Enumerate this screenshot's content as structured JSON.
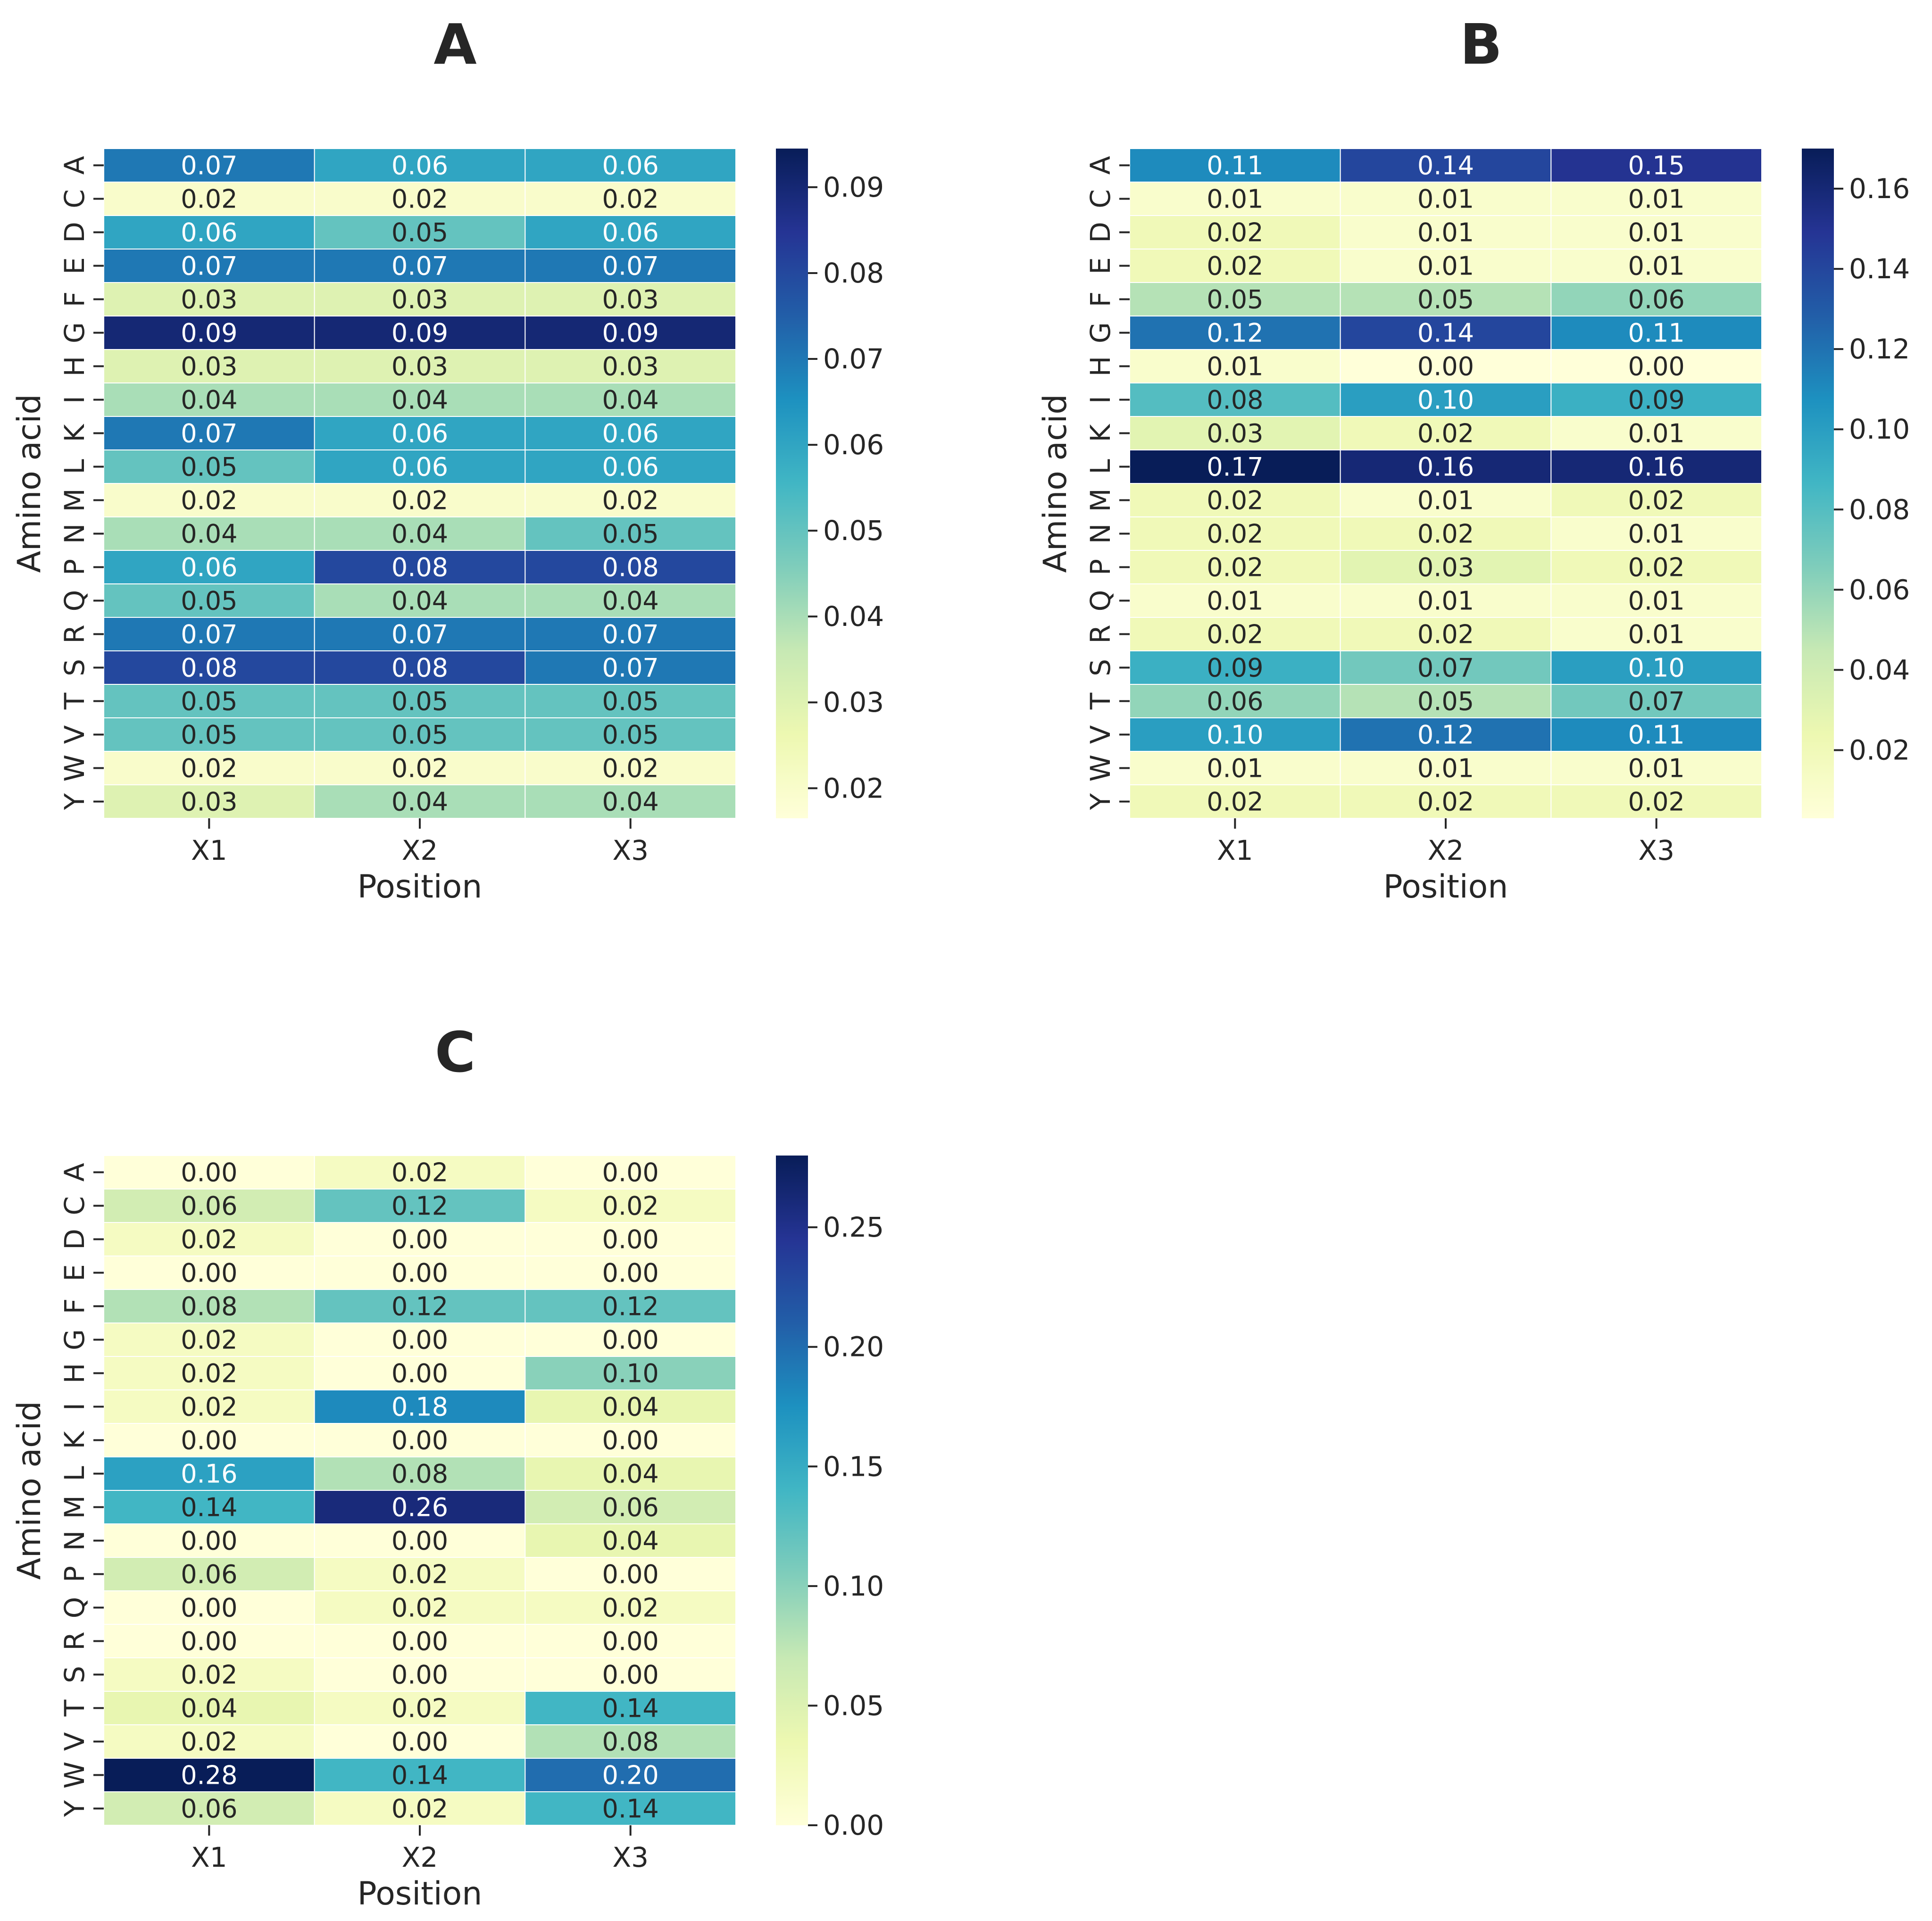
{
  "chart_data": [
    {
      "type": "heatmap",
      "title": "A",
      "xlabel": "Position",
      "ylabel": "Amino acid",
      "x_categories": [
        "X1",
        "X2",
        "X3"
      ],
      "y_categories": [
        "A",
        "C",
        "D",
        "E",
        "F",
        "G",
        "H",
        "I",
        "K",
        "L",
        "M",
        "N",
        "P",
        "Q",
        "R",
        "S",
        "T",
        "V",
        "W",
        "Y"
      ],
      "values": [
        [
          0.07,
          0.06,
          0.06
        ],
        [
          0.02,
          0.02,
          0.02
        ],
        [
          0.06,
          0.05,
          0.06
        ],
        [
          0.07,
          0.07,
          0.07
        ],
        [
          0.03,
          0.03,
          0.03
        ],
        [
          0.09,
          0.09,
          0.09
        ],
        [
          0.03,
          0.03,
          0.03
        ],
        [
          0.04,
          0.04,
          0.04
        ],
        [
          0.07,
          0.06,
          0.06
        ],
        [
          0.05,
          0.06,
          0.06
        ],
        [
          0.02,
          0.02,
          0.02
        ],
        [
          0.04,
          0.04,
          0.05
        ],
        [
          0.06,
          0.08,
          0.08
        ],
        [
          0.05,
          0.04,
          0.04
        ],
        [
          0.07,
          0.07,
          0.07
        ],
        [
          0.08,
          0.08,
          0.07
        ],
        [
          0.05,
          0.05,
          0.05
        ],
        [
          0.05,
          0.05,
          0.05
        ],
        [
          0.02,
          0.02,
          0.02
        ],
        [
          0.03,
          0.04,
          0.04
        ]
      ],
      "colormap": "YlGnBu",
      "colorbar_range": [
        0.0165,
        0.0945
      ],
      "colorbar_ticks": [
        "0.02",
        "0.03",
        "0.04",
        "0.05",
        "0.06",
        "0.07",
        "0.08",
        "0.09"
      ]
    },
    {
      "type": "heatmap",
      "title": "B",
      "xlabel": "Position",
      "ylabel": "Amino acid",
      "x_categories": [
        "X1",
        "X2",
        "X3"
      ],
      "y_categories": [
        "A",
        "C",
        "D",
        "E",
        "F",
        "G",
        "H",
        "I",
        "K",
        "L",
        "M",
        "N",
        "P",
        "Q",
        "R",
        "S",
        "T",
        "V",
        "W",
        "Y"
      ],
      "values": [
        [
          0.11,
          0.14,
          0.15
        ],
        [
          0.01,
          0.01,
          0.01
        ],
        [
          0.02,
          0.01,
          0.01
        ],
        [
          0.02,
          0.01,
          0.01
        ],
        [
          0.05,
          0.05,
          0.06
        ],
        [
          0.12,
          0.14,
          0.11
        ],
        [
          0.01,
          0.0,
          0.0
        ],
        [
          0.08,
          0.1,
          0.09
        ],
        [
          0.03,
          0.02,
          0.01
        ],
        [
          0.17,
          0.16,
          0.16
        ],
        [
          0.02,
          0.01,
          0.02
        ],
        [
          0.02,
          0.02,
          0.01
        ],
        [
          0.02,
          0.03,
          0.02
        ],
        [
          0.01,
          0.01,
          0.01
        ],
        [
          0.02,
          0.02,
          0.01
        ],
        [
          0.09,
          0.07,
          0.1
        ],
        [
          0.06,
          0.05,
          0.07
        ],
        [
          0.1,
          0.12,
          0.11
        ],
        [
          0.01,
          0.01,
          0.01
        ],
        [
          0.02,
          0.02,
          0.02
        ]
      ],
      "colormap": "YlGnBu",
      "colorbar_range": [
        0.003,
        0.17
      ],
      "colorbar_ticks": [
        "0.02",
        "0.04",
        "0.06",
        "0.08",
        "0.10",
        "0.12",
        "0.14",
        "0.16"
      ]
    },
    {
      "type": "heatmap",
      "title": "C",
      "xlabel": "Position",
      "ylabel": "Amino acid",
      "x_categories": [
        "X1",
        "X2",
        "X3"
      ],
      "y_categories": [
        "A",
        "C",
        "D",
        "E",
        "F",
        "G",
        "H",
        "I",
        "K",
        "L",
        "M",
        "N",
        "P",
        "Q",
        "R",
        "S",
        "T",
        "V",
        "W",
        "Y"
      ],
      "values": [
        [
          0.0,
          0.02,
          0.0
        ],
        [
          0.06,
          0.12,
          0.02
        ],
        [
          0.02,
          0.0,
          0.0
        ],
        [
          0.0,
          0.0,
          0.0
        ],
        [
          0.08,
          0.12,
          0.12
        ],
        [
          0.02,
          0.0,
          0.0
        ],
        [
          0.02,
          0.0,
          0.1
        ],
        [
          0.02,
          0.18,
          0.04
        ],
        [
          0.0,
          0.0,
          0.0
        ],
        [
          0.16,
          0.08,
          0.04
        ],
        [
          0.14,
          0.26,
          0.06
        ],
        [
          0.0,
          0.0,
          0.04
        ],
        [
          0.06,
          0.02,
          0.0
        ],
        [
          0.0,
          0.02,
          0.02
        ],
        [
          0.0,
          0.0,
          0.0
        ],
        [
          0.02,
          0.0,
          0.0
        ],
        [
          0.04,
          0.02,
          0.14
        ],
        [
          0.02,
          0.0,
          0.08
        ],
        [
          0.28,
          0.14,
          0.2
        ],
        [
          0.06,
          0.02,
          0.14
        ]
      ],
      "colormap": "YlGnBu",
      "colorbar_range": [
        0.0,
        0.28
      ],
      "colorbar_ticks": [
        "0.00",
        "0.05",
        "0.10",
        "0.15",
        "0.20",
        "0.25"
      ]
    }
  ]
}
